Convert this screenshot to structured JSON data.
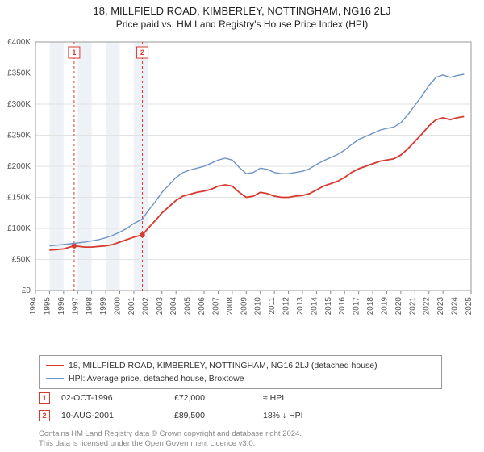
{
  "title": "18, MILLFIELD ROAD, KIMBERLEY, NOTTINGHAM, NG16 2LJ",
  "subtitle": "Price paid vs. HM Land Registry's House Price Index (HPI)",
  "chart": {
    "type": "line",
    "background_color": "#ffffff",
    "plot_border_color": "#999999",
    "grid_color": "#e2e2e2",
    "band_color": "#eef2f6",
    "x": {
      "min": 1994,
      "max": 2025,
      "tick_step": 1,
      "label_rotation": -90,
      "label_fontsize": 10,
      "label_color": "#555555"
    },
    "y": {
      "min": 0,
      "max": 400000,
      "tick_step": 50000,
      "tick_labels": [
        "£0",
        "£50K",
        "£100K",
        "£150K",
        "£200K",
        "£250K",
        "£300K",
        "£350K",
        "£400K"
      ],
      "label_fontsize": 10,
      "label_color": "#555555"
    },
    "bands": [
      {
        "from": 1995,
        "to": 1996
      },
      {
        "from": 1997,
        "to": 1998
      },
      {
        "from": 1999,
        "to": 2000
      },
      {
        "from": 2001,
        "to": 2002
      }
    ],
    "sale_lines": [
      {
        "x": 1996.75,
        "color": "#d63a2f",
        "dash": "3,3",
        "label": "1"
      },
      {
        "x": 2001.61,
        "color": "#d63a2f",
        "dash": "3,3",
        "label": "2"
      }
    ],
    "series": [
      {
        "name": "property",
        "label": "18, MILLFIELD ROAD, KIMBERLEY, NOTTINGHAM, NG16 2LJ (detached house)",
        "color": "#d63a2f",
        "line_width": 1.8,
        "markers": [
          {
            "x": 1996.75,
            "y": 72000,
            "r": 3.2
          },
          {
            "x": 2001.61,
            "y": 89500,
            "r": 3.2
          }
        ],
        "data": [
          [
            1995.0,
            65000
          ],
          [
            1995.5,
            66000
          ],
          [
            1996.0,
            67000
          ],
          [
            1996.75,
            72000
          ],
          [
            1997.5,
            70000
          ],
          [
            1998.0,
            70000
          ],
          [
            1998.5,
            71000
          ],
          [
            1999.0,
            72000
          ],
          [
            1999.5,
            74000
          ],
          [
            2000.0,
            78000
          ],
          [
            2000.5,
            82000
          ],
          [
            2001.0,
            86000
          ],
          [
            2001.61,
            89500
          ],
          [
            2002.0,
            100000
          ],
          [
            2002.5,
            112000
          ],
          [
            2003.0,
            125000
          ],
          [
            2003.5,
            135000
          ],
          [
            2004.0,
            145000
          ],
          [
            2004.5,
            152000
          ],
          [
            2005.0,
            155000
          ],
          [
            2005.5,
            158000
          ],
          [
            2006.0,
            160000
          ],
          [
            2006.5,
            163000
          ],
          [
            2007.0,
            168000
          ],
          [
            2007.5,
            170000
          ],
          [
            2008.0,
            168000
          ],
          [
            2008.5,
            158000
          ],
          [
            2009.0,
            150000
          ],
          [
            2009.5,
            152000
          ],
          [
            2010.0,
            158000
          ],
          [
            2010.5,
            156000
          ],
          [
            2011.0,
            152000
          ],
          [
            2011.5,
            150000
          ],
          [
            2012.0,
            150000
          ],
          [
            2012.5,
            152000
          ],
          [
            2013.0,
            153000
          ],
          [
            2013.5,
            156000
          ],
          [
            2014.0,
            162000
          ],
          [
            2014.5,
            168000
          ],
          [
            2015.0,
            172000
          ],
          [
            2015.5,
            176000
          ],
          [
            2016.0,
            182000
          ],
          [
            2016.5,
            190000
          ],
          [
            2017.0,
            196000
          ],
          [
            2017.5,
            200000
          ],
          [
            2018.0,
            204000
          ],
          [
            2018.5,
            208000
          ],
          [
            2019.0,
            210000
          ],
          [
            2019.5,
            212000
          ],
          [
            2020.0,
            218000
          ],
          [
            2020.5,
            228000
          ],
          [
            2021.0,
            240000
          ],
          [
            2021.5,
            252000
          ],
          [
            2022.0,
            265000
          ],
          [
            2022.5,
            275000
          ],
          [
            2023.0,
            278000
          ],
          [
            2023.5,
            275000
          ],
          [
            2024.0,
            278000
          ],
          [
            2024.5,
            280000
          ]
        ]
      },
      {
        "name": "hpi",
        "label": "HPI: Average price, detached house, Broxtowe",
        "color": "#6f93c7",
        "line_width": 1.4,
        "data": [
          [
            1995.0,
            72000
          ],
          [
            1995.5,
            73000
          ],
          [
            1996.0,
            74000
          ],
          [
            1996.75,
            76000
          ],
          [
            1997.5,
            78000
          ],
          [
            1998.0,
            80000
          ],
          [
            1998.5,
            82000
          ],
          [
            1999.0,
            85000
          ],
          [
            1999.5,
            89000
          ],
          [
            2000.0,
            94000
          ],
          [
            2000.5,
            100000
          ],
          [
            2001.0,
            108000
          ],
          [
            2001.61,
            115000
          ],
          [
            2002.0,
            128000
          ],
          [
            2002.5,
            142000
          ],
          [
            2003.0,
            158000
          ],
          [
            2003.5,
            170000
          ],
          [
            2004.0,
            182000
          ],
          [
            2004.5,
            190000
          ],
          [
            2005.0,
            194000
          ],
          [
            2005.5,
            197000
          ],
          [
            2006.0,
            200000
          ],
          [
            2006.5,
            205000
          ],
          [
            2007.0,
            210000
          ],
          [
            2007.5,
            213000
          ],
          [
            2008.0,
            210000
          ],
          [
            2008.5,
            198000
          ],
          [
            2009.0,
            188000
          ],
          [
            2009.5,
            190000
          ],
          [
            2010.0,
            197000
          ],
          [
            2010.5,
            195000
          ],
          [
            2011.0,
            190000
          ],
          [
            2011.5,
            188000
          ],
          [
            2012.0,
            188000
          ],
          [
            2012.5,
            190000
          ],
          [
            2013.0,
            192000
          ],
          [
            2013.5,
            196000
          ],
          [
            2014.0,
            203000
          ],
          [
            2014.5,
            209000
          ],
          [
            2015.0,
            214000
          ],
          [
            2015.5,
            219000
          ],
          [
            2016.0,
            226000
          ],
          [
            2016.5,
            235000
          ],
          [
            2017.0,
            243000
          ],
          [
            2017.5,
            248000
          ],
          [
            2018.0,
            253000
          ],
          [
            2018.5,
            258000
          ],
          [
            2019.0,
            261000
          ],
          [
            2019.5,
            263000
          ],
          [
            2020.0,
            270000
          ],
          [
            2020.5,
            283000
          ],
          [
            2021.0,
            298000
          ],
          [
            2021.5,
            313000
          ],
          [
            2022.0,
            330000
          ],
          [
            2022.5,
            343000
          ],
          [
            2023.0,
            347000
          ],
          [
            2023.5,
            343000
          ],
          [
            2024.0,
            346000
          ],
          [
            2024.5,
            348000
          ]
        ]
      }
    ]
  },
  "legend": {
    "border_color": "#999999",
    "text_color": "#333333",
    "fontsize": 10.5
  },
  "sales": {
    "header_fontsize": 10.5,
    "marker_border": "#d63a2f",
    "marker_text_color": "#d63a2f",
    "rows": [
      {
        "n": "1",
        "date": "02-OCT-1996",
        "price": "£72,000",
        "delta": "≈ HPI"
      },
      {
        "n": "2",
        "date": "10-AUG-2001",
        "price": "£89,500",
        "delta": "18% ↓ HPI"
      }
    ]
  },
  "attribution": {
    "line1": "Contains HM Land Registry data © Crown copyright and database right 2024.",
    "line2": "This data is licensed under the Open Government Licence v3.0."
  }
}
